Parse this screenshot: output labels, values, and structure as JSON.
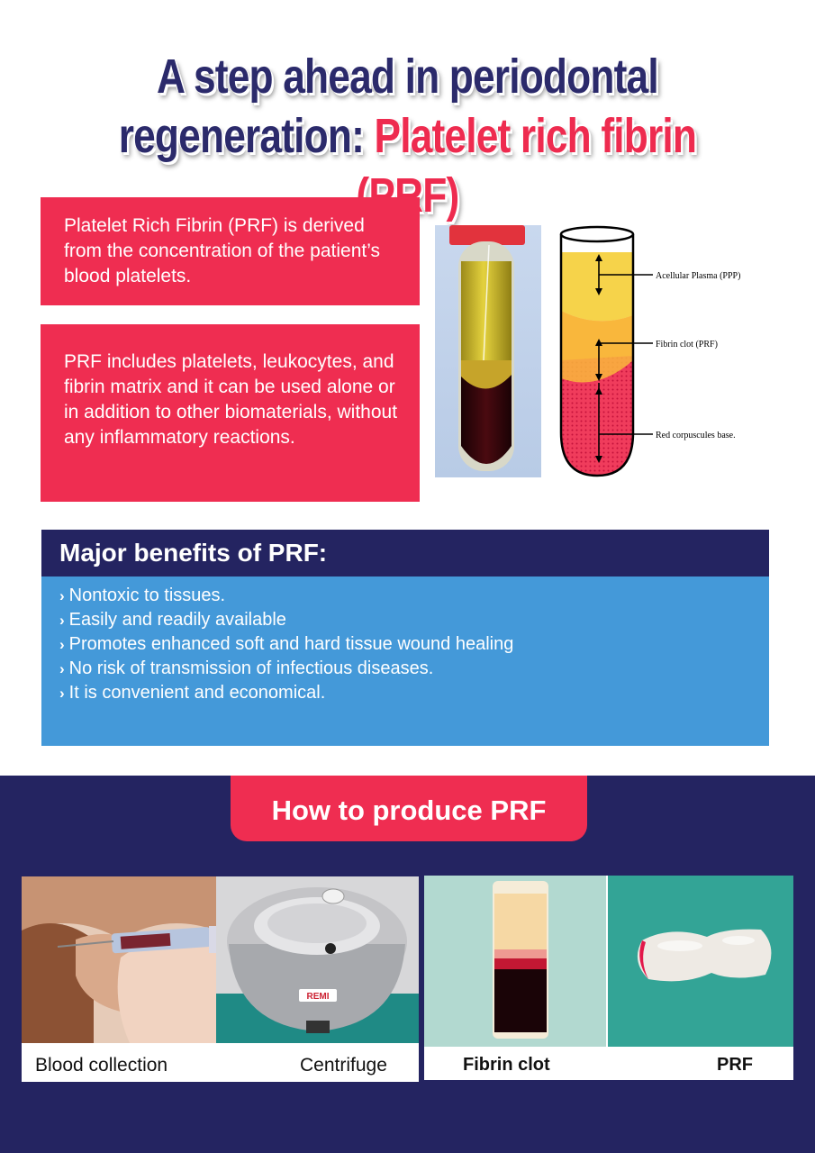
{
  "title": {
    "line1": "A step ahead in periodontal",
    "line2_prefix": "regeneration: ",
    "line2_highlight": "Platelet rich fibrin (PRF)"
  },
  "info_boxes": [
    {
      "text": "Platelet Rich Fibrin (PRF) is derived from the concentration of the patient’s blood platelets."
    },
    {
      "text": "PRF includes platelets, leukocytes, and fibrin matrix and it can be used alone or in addition to other biomaterials, without any inflammatory reactions."
    }
  ],
  "diagram": {
    "labels": [
      "Acellular Plasma (PPP)",
      "Fibrin clot (PRF)",
      "Red corpuscules base."
    ]
  },
  "benefits": {
    "heading": "Major benefits of PRF:",
    "items": [
      "Nontoxic to tissues.",
      "Easily and readily available",
      "Promotes enhanced soft and hard tissue wound healing",
      "No risk of transmission of infectious diseases.",
      "It is convenient and economical."
    ],
    "bullet": "›"
  },
  "how_to": {
    "heading": "How to produce PRF",
    "centrifuge_brand": "REMI",
    "captions": [
      "Blood collection",
      "Centrifuge",
      "Fibrin clot",
      "PRF"
    ]
  },
  "colors": {
    "navy": "#242461",
    "pink": "#ef2d51",
    "blue": "#4499d9",
    "title_navy": "#2b2a6b"
  }
}
